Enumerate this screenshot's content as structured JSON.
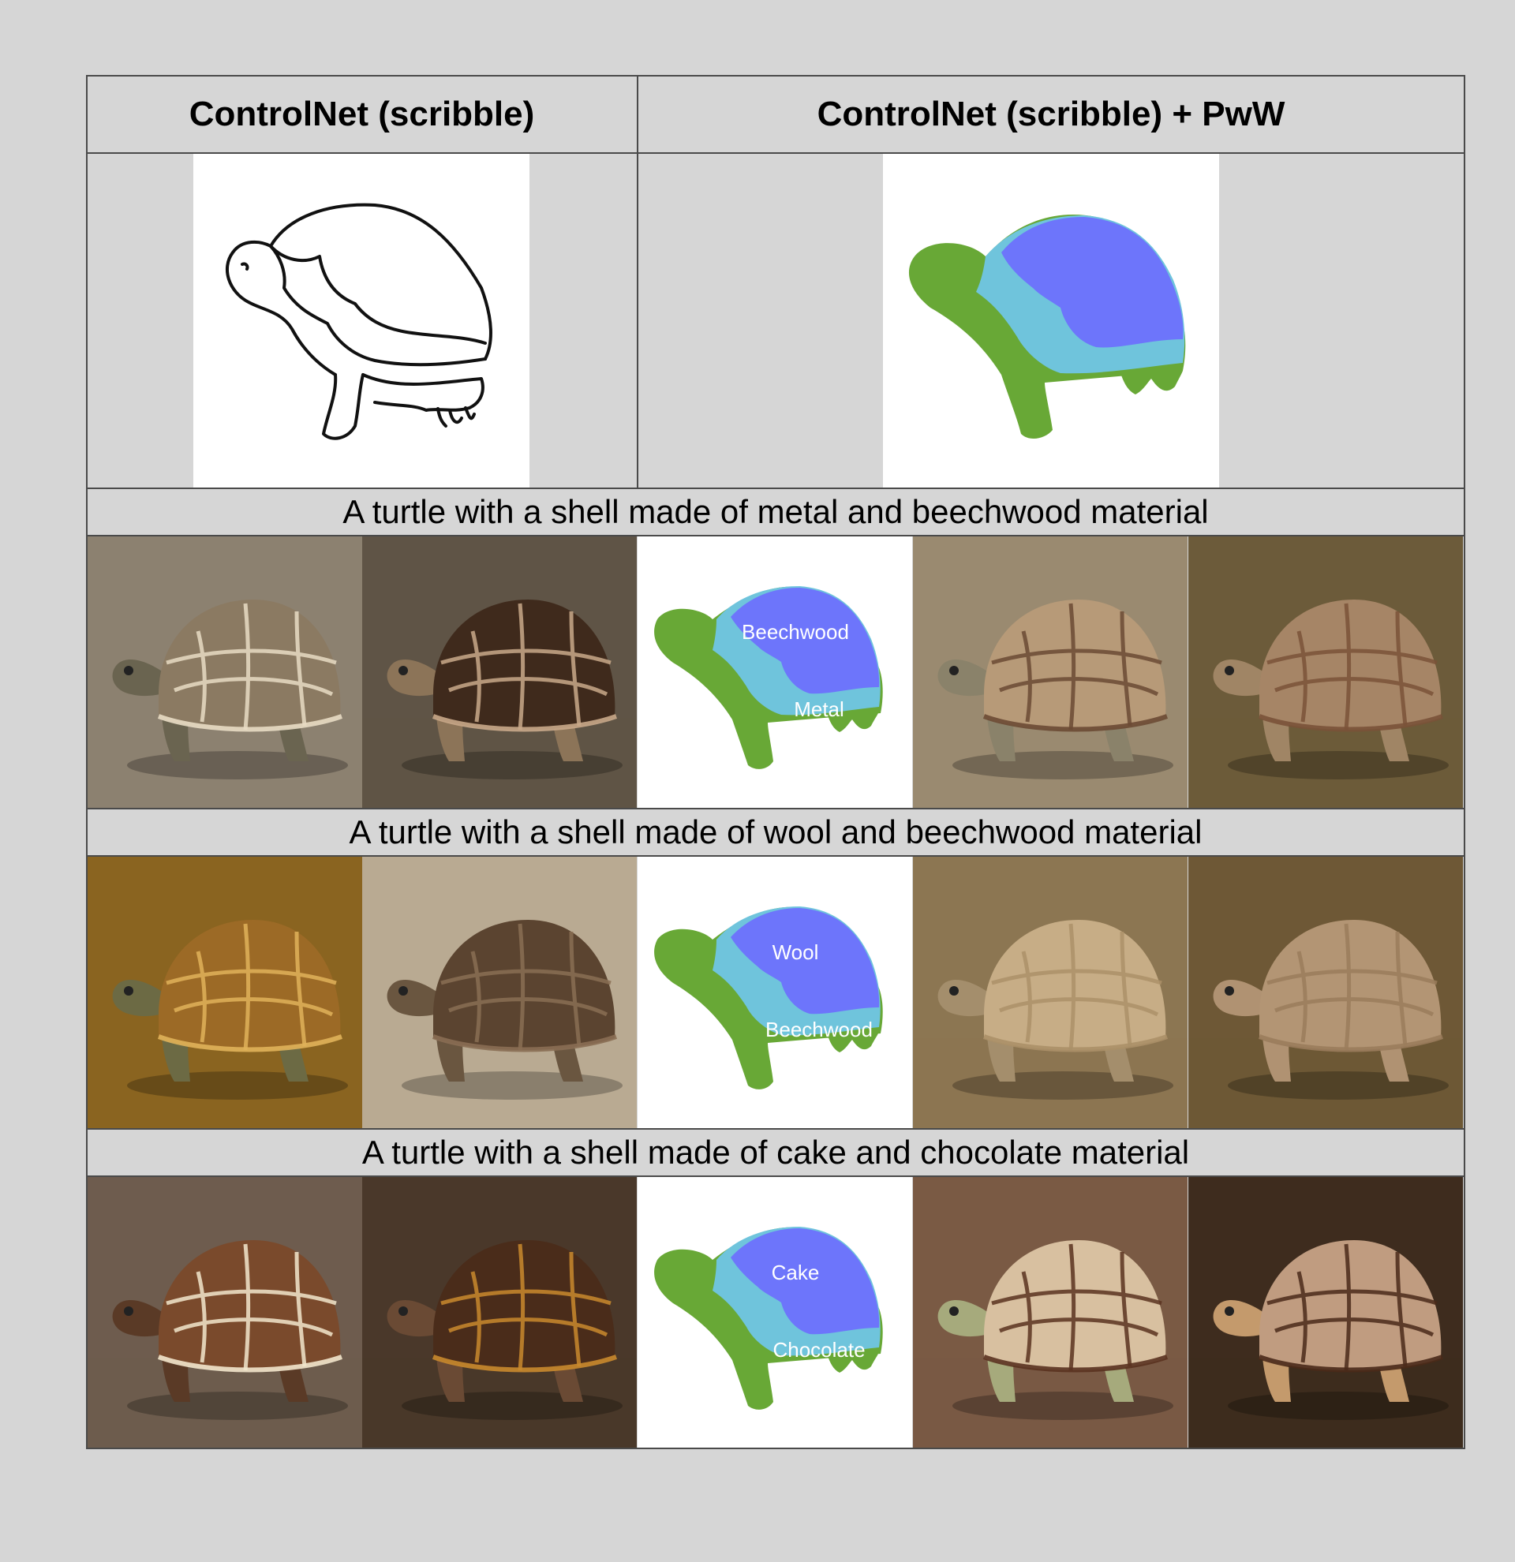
{
  "headers": {
    "left": "ControlNet (scribble)",
    "right": "ControlNet (scribble) + PwW"
  },
  "rows": [
    {
      "prompt": "A turtle with a shell made of metal and beechwood material",
      "mask_labels": {
        "top": "Beechwood",
        "bottom": "Metal"
      },
      "tiles": [
        {
          "bg": "#8c8170",
          "shell": "#8b7a62",
          "pattern": "#e8dcc4",
          "skin": "#6a6450"
        },
        {
          "bg": "#5f5446",
          "shell": "#3f2a1c",
          "pattern": "#c9a98a",
          "skin": "#8c7458"
        },
        {
          "bg": "#9a8a70",
          "shell": "#b79a78",
          "pattern": "#6b4a34",
          "skin": "#8a826a"
        },
        {
          "bg": "#6c5b3a",
          "shell": "#a68566",
          "pattern": "#7a5238",
          "skin": "#a08565"
        }
      ]
    },
    {
      "prompt": "A turtle with a shell made of wool and beechwood material",
      "mask_labels": {
        "top": "Wool",
        "bottom": "Beechwood"
      },
      "tiles": [
        {
          "bg": "#8a6420",
          "shell": "#9c6a26",
          "pattern": "#e0b25a",
          "skin": "#6c6a44"
        },
        {
          "bg": "#b9aa92",
          "shell": "#5b4430",
          "pattern": "#8a6e54",
          "skin": "#6a5640"
        },
        {
          "bg": "#8c7652",
          "shell": "#c7ad86",
          "pattern": "#ab9068",
          "skin": "#a48e6c"
        },
        {
          "bg": "#6e5836",
          "shell": "#b39574",
          "pattern": "#9a7c5c",
          "skin": "#b09272"
        }
      ]
    },
    {
      "prompt": "A turtle with a shell made of cake and chocolate material",
      "mask_labels": {
        "top": "Cake",
        "bottom": "Chocolate"
      },
      "tiles": [
        {
          "bg": "#6e5c4e",
          "shell": "#7a4a2c",
          "pattern": "#f2e6cc",
          "skin": "#5a3a26"
        },
        {
          "bg": "#4a382a",
          "shell": "#4a2c1a",
          "pattern": "#c9892e",
          "skin": "#6a4a34"
        },
        {
          "bg": "#7a5a44",
          "shell": "#d8c0a0",
          "pattern": "#5a3220",
          "skin": "#a6aa7c"
        },
        {
          "bg": "#3e2c1e",
          "shell": "#c09c80",
          "pattern": "#4a2a1a",
          "skin": "#c49a6c"
        }
      ]
    }
  ]
}
